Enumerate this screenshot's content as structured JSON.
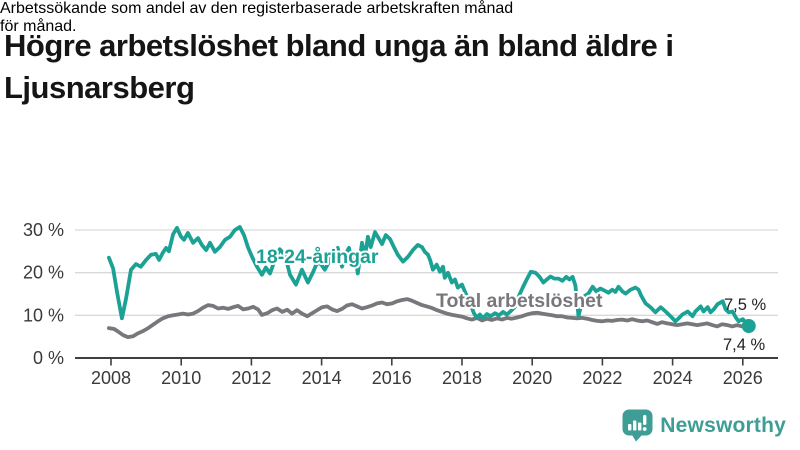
{
  "header": {
    "title_lines": [
      "Högre arbetslöshet bland unga än bland äldre i",
      "Ljusnarsberg"
    ],
    "subtitle_lines": [
      "Arbetssökande som andel av den registerbaserade arbetskraften månad",
      "för månad."
    ]
  },
  "footer": {
    "brand": "Newsworthy"
  },
  "colors": {
    "youth_line": "#1ba294",
    "total_line": "#77777c",
    "axis": "#3f3f3f",
    "grid": "#d9d9d9",
    "tick_text": "#3a3a3a",
    "end_label_text": "#1f1f1f",
    "brand_teal": "#3e9d95",
    "background": "#ffffff"
  },
  "chart_data": {
    "type": "line",
    "title": "Högre arbetslöshet bland unga än bland äldre i Ljusnarsberg",
    "subtitle": "Arbetssökande som andel av den registerbaserade arbetskraften månad för månad.",
    "xlabel": "",
    "ylabel": "",
    "y_axis": {
      "unit": "%",
      "min": 0,
      "max": 32,
      "ticks": [
        0,
        10,
        20,
        30
      ],
      "tick_labels": [
        "0 %",
        "10 %",
        "20 %",
        "30 %"
      ],
      "grid": true
    },
    "x_axis": {
      "min": 2006.9,
      "max": 2027.1,
      "ticks": [
        2008,
        2010,
        2012,
        2014,
        2016,
        2018,
        2020,
        2022,
        2024,
        2026
      ]
    },
    "legend_position": "inline-labels",
    "series": [
      {
        "name": "18-24-åringar",
        "end_label": "7,5 %",
        "end_value": 7.5,
        "points": [
          [
            2007.94,
            23.5
          ],
          [
            2008.06,
            21.0
          ],
          [
            2008.17,
            15.5
          ],
          [
            2008.31,
            9.3
          ],
          [
            2008.43,
            14.0
          ],
          [
            2008.57,
            20.7
          ],
          [
            2008.71,
            22.0
          ],
          [
            2008.85,
            21.4
          ],
          [
            2009.0,
            23.0
          ],
          [
            2009.14,
            24.2
          ],
          [
            2009.28,
            24.4
          ],
          [
            2009.37,
            23.0
          ],
          [
            2009.48,
            24.7
          ],
          [
            2009.57,
            25.8
          ],
          [
            2009.65,
            25.0
          ],
          [
            2009.77,
            29.0
          ],
          [
            2009.88,
            30.5
          ],
          [
            2009.99,
            28.5
          ],
          [
            2010.08,
            27.7
          ],
          [
            2010.19,
            29.3
          ],
          [
            2010.34,
            27.0
          ],
          [
            2010.48,
            28.1
          ],
          [
            2010.59,
            26.5
          ],
          [
            2010.71,
            25.3
          ],
          [
            2010.82,
            27.0
          ],
          [
            2010.96,
            24.9
          ],
          [
            2011.1,
            26.0
          ],
          [
            2011.25,
            27.7
          ],
          [
            2011.39,
            28.4
          ],
          [
            2011.53,
            30.0
          ],
          [
            2011.67,
            30.7
          ],
          [
            2011.79,
            28.8
          ],
          [
            2011.9,
            26.0
          ],
          [
            2012.02,
            23.7
          ],
          [
            2012.16,
            21.4
          ],
          [
            2012.3,
            19.5
          ],
          [
            2012.41,
            21.2
          ],
          [
            2012.53,
            19.8
          ],
          [
            2012.67,
            23.0
          ],
          [
            2012.81,
            25.5
          ],
          [
            2012.96,
            24.0
          ],
          [
            2013.1,
            19.5
          ],
          [
            2013.27,
            17.2
          ],
          [
            2013.44,
            20.7
          ],
          [
            2013.61,
            17.7
          ],
          [
            2013.75,
            20.0
          ],
          [
            2013.87,
            22.3
          ],
          [
            2013.98,
            22.0
          ],
          [
            2014.09,
            20.7
          ],
          [
            2014.24,
            23.0
          ],
          [
            2014.35,
            25.0
          ],
          [
            2014.46,
            25.8
          ],
          [
            2014.58,
            21.4
          ],
          [
            2014.69,
            24.5
          ],
          [
            2014.78,
            25.8
          ],
          [
            2014.86,
            22.6
          ],
          [
            2014.95,
            24.2
          ],
          [
            2015.03,
            19.8
          ],
          [
            2015.15,
            27.0
          ],
          [
            2015.23,
            23.5
          ],
          [
            2015.32,
            28.4
          ],
          [
            2015.4,
            26.0
          ],
          [
            2015.52,
            29.5
          ],
          [
            2015.63,
            28.0
          ],
          [
            2015.72,
            26.7
          ],
          [
            2015.83,
            28.8
          ],
          [
            2015.95,
            27.9
          ],
          [
            2016.06,
            26.0
          ],
          [
            2016.17,
            24.2
          ],
          [
            2016.32,
            22.6
          ],
          [
            2016.46,
            23.7
          ],
          [
            2016.6,
            25.3
          ],
          [
            2016.74,
            26.5
          ],
          [
            2016.86,
            26.0
          ],
          [
            2016.94,
            24.9
          ],
          [
            2017.03,
            24.2
          ],
          [
            2017.09,
            23.0
          ],
          [
            2017.17,
            20.7
          ],
          [
            2017.28,
            21.9
          ],
          [
            2017.37,
            20.2
          ],
          [
            2017.46,
            21.4
          ],
          [
            2017.51,
            18.8
          ],
          [
            2017.6,
            20.0
          ],
          [
            2017.71,
            17.7
          ],
          [
            2017.8,
            18.4
          ],
          [
            2017.88,
            16.5
          ],
          [
            2018.0,
            17.2
          ],
          [
            2018.08,
            15.6
          ],
          [
            2018.22,
            13.0
          ],
          [
            2018.34,
            10.5
          ],
          [
            2018.42,
            9.5
          ],
          [
            2018.51,
            10.2
          ],
          [
            2018.6,
            9.3
          ],
          [
            2018.71,
            10.3
          ],
          [
            2018.82,
            9.8
          ],
          [
            2018.94,
            10.5
          ],
          [
            2019.05,
            10.0
          ],
          [
            2019.17,
            10.8
          ],
          [
            2019.28,
            10.2
          ],
          [
            2019.39,
            11.0
          ],
          [
            2019.51,
            12.0
          ],
          [
            2019.62,
            14.5
          ],
          [
            2019.73,
            16.5
          ],
          [
            2019.85,
            18.5
          ],
          [
            2019.96,
            20.2
          ],
          [
            2020.09,
            20.0
          ],
          [
            2020.21,
            19.0
          ],
          [
            2020.32,
            17.7
          ],
          [
            2020.43,
            18.5
          ],
          [
            2020.52,
            19.1
          ],
          [
            2020.63,
            18.6
          ],
          [
            2020.75,
            18.6
          ],
          [
            2020.86,
            18.1
          ],
          [
            2020.97,
            19.0
          ],
          [
            2021.06,
            18.4
          ],
          [
            2021.15,
            19.0
          ],
          [
            2021.23,
            17.0
          ],
          [
            2021.32,
            9.8
          ],
          [
            2021.4,
            12.5
          ],
          [
            2021.49,
            14.5
          ],
          [
            2021.6,
            15.1
          ],
          [
            2021.72,
            16.7
          ],
          [
            2021.83,
            15.6
          ],
          [
            2021.94,
            16.3
          ],
          [
            2022.06,
            15.8
          ],
          [
            2022.17,
            15.3
          ],
          [
            2022.28,
            16.0
          ],
          [
            2022.37,
            15.5
          ],
          [
            2022.46,
            16.7
          ],
          [
            2022.57,
            15.6
          ],
          [
            2022.66,
            15.1
          ],
          [
            2022.8,
            16.0
          ],
          [
            2022.94,
            16.5
          ],
          [
            2023.03,
            16.0
          ],
          [
            2023.11,
            14.5
          ],
          [
            2023.23,
            12.8
          ],
          [
            2023.37,
            11.9
          ],
          [
            2023.51,
            10.7
          ],
          [
            2023.66,
            11.9
          ],
          [
            2023.8,
            10.9
          ],
          [
            2023.94,
            9.8
          ],
          [
            2024.08,
            8.6
          ],
          [
            2024.2,
            9.5
          ],
          [
            2024.28,
            10.2
          ],
          [
            2024.43,
            10.9
          ],
          [
            2024.57,
            9.8
          ],
          [
            2024.65,
            10.9
          ],
          [
            2024.8,
            12.1
          ],
          [
            2024.88,
            10.9
          ],
          [
            2025.0,
            11.9
          ],
          [
            2025.08,
            10.7
          ],
          [
            2025.17,
            11.4
          ],
          [
            2025.28,
            12.6
          ],
          [
            2025.43,
            13.3
          ],
          [
            2025.51,
            11.4
          ],
          [
            2025.6,
            10.7
          ],
          [
            2025.71,
            10.9
          ],
          [
            2025.8,
            9.5
          ],
          [
            2025.88,
            8.6
          ],
          [
            2026.0,
            9.1
          ],
          [
            2026.08,
            8.4
          ],
          [
            2026.17,
            7.5
          ]
        ]
      },
      {
        "name": "Total arbetslöshet",
        "end_label": "7,4 %",
        "end_value": 7.4,
        "points": [
          [
            2007.94,
            7.0
          ],
          [
            2008.09,
            6.8
          ],
          [
            2008.2,
            6.2
          ],
          [
            2008.34,
            5.4
          ],
          [
            2008.48,
            4.9
          ],
          [
            2008.63,
            5.1
          ],
          [
            2008.77,
            5.8
          ],
          [
            2008.91,
            6.3
          ],
          [
            2009.06,
            7.0
          ],
          [
            2009.2,
            7.8
          ],
          [
            2009.34,
            8.6
          ],
          [
            2009.48,
            9.3
          ],
          [
            2009.63,
            9.8
          ],
          [
            2009.77,
            10.0
          ],
          [
            2009.91,
            10.2
          ],
          [
            2010.05,
            10.4
          ],
          [
            2010.2,
            10.2
          ],
          [
            2010.34,
            10.4
          ],
          [
            2010.48,
            11.0
          ],
          [
            2010.62,
            11.8
          ],
          [
            2010.77,
            12.4
          ],
          [
            2010.91,
            12.2
          ],
          [
            2011.05,
            11.6
          ],
          [
            2011.19,
            11.8
          ],
          [
            2011.34,
            11.5
          ],
          [
            2011.48,
            11.9
          ],
          [
            2011.62,
            12.2
          ],
          [
            2011.77,
            11.4
          ],
          [
            2011.91,
            11.6
          ],
          [
            2012.05,
            12.0
          ],
          [
            2012.19,
            11.4
          ],
          [
            2012.3,
            10.1
          ],
          [
            2012.45,
            10.5
          ],
          [
            2012.59,
            11.2
          ],
          [
            2012.73,
            11.6
          ],
          [
            2012.88,
            10.8
          ],
          [
            2013.02,
            11.3
          ],
          [
            2013.16,
            10.4
          ],
          [
            2013.3,
            11.2
          ],
          [
            2013.44,
            10.4
          ],
          [
            2013.59,
            9.8
          ],
          [
            2013.73,
            10.5
          ],
          [
            2013.87,
            11.2
          ],
          [
            2014.01,
            11.9
          ],
          [
            2014.16,
            12.1
          ],
          [
            2014.3,
            11.4
          ],
          [
            2014.44,
            11.0
          ],
          [
            2014.58,
            11.5
          ],
          [
            2014.72,
            12.3
          ],
          [
            2014.87,
            12.6
          ],
          [
            2015.01,
            12.1
          ],
          [
            2015.15,
            11.6
          ],
          [
            2015.29,
            11.9
          ],
          [
            2015.44,
            12.3
          ],
          [
            2015.58,
            12.8
          ],
          [
            2015.72,
            13.0
          ],
          [
            2015.86,
            12.6
          ],
          [
            2016.01,
            12.8
          ],
          [
            2016.15,
            13.3
          ],
          [
            2016.29,
            13.6
          ],
          [
            2016.44,
            13.8
          ],
          [
            2016.58,
            13.4
          ],
          [
            2016.72,
            12.9
          ],
          [
            2016.86,
            12.4
          ],
          [
            2017.0,
            12.1
          ],
          [
            2017.15,
            11.7
          ],
          [
            2017.29,
            11.2
          ],
          [
            2017.43,
            10.8
          ],
          [
            2017.57,
            10.4
          ],
          [
            2017.72,
            10.1
          ],
          [
            2017.86,
            9.9
          ],
          [
            2018.0,
            9.7
          ],
          [
            2018.14,
            9.3
          ],
          [
            2018.28,
            9.0
          ],
          [
            2018.43,
            9.4
          ],
          [
            2018.57,
            8.8
          ],
          [
            2018.71,
            9.2
          ],
          [
            2018.85,
            8.9
          ],
          [
            2019.0,
            9.3
          ],
          [
            2019.14,
            9.0
          ],
          [
            2019.28,
            9.4
          ],
          [
            2019.42,
            9.2
          ],
          [
            2019.57,
            9.5
          ],
          [
            2019.71,
            9.8
          ],
          [
            2019.85,
            10.2
          ],
          [
            2020.0,
            10.5
          ],
          [
            2020.14,
            10.6
          ],
          [
            2020.28,
            10.4
          ],
          [
            2020.43,
            10.2
          ],
          [
            2020.57,
            10.0
          ],
          [
            2020.71,
            9.8
          ],
          [
            2020.85,
            9.8
          ],
          [
            2021.0,
            9.5
          ],
          [
            2021.14,
            9.4
          ],
          [
            2021.28,
            9.3
          ],
          [
            2021.42,
            9.4
          ],
          [
            2021.57,
            9.2
          ],
          [
            2021.71,
            8.9
          ],
          [
            2021.85,
            8.7
          ],
          [
            2022.0,
            8.6
          ],
          [
            2022.14,
            8.8
          ],
          [
            2022.28,
            8.7
          ],
          [
            2022.42,
            8.9
          ],
          [
            2022.56,
            9.0
          ],
          [
            2022.71,
            8.8
          ],
          [
            2022.85,
            9.1
          ],
          [
            2022.99,
            8.8
          ],
          [
            2023.13,
            8.6
          ],
          [
            2023.28,
            8.8
          ],
          [
            2023.42,
            8.4
          ],
          [
            2023.56,
            8.0
          ],
          [
            2023.7,
            8.4
          ],
          [
            2023.85,
            8.1
          ],
          [
            2023.99,
            7.9
          ],
          [
            2024.13,
            7.7
          ],
          [
            2024.27,
            7.9
          ],
          [
            2024.42,
            8.1
          ],
          [
            2024.56,
            7.9
          ],
          [
            2024.7,
            7.7
          ],
          [
            2024.84,
            7.9
          ],
          [
            2024.99,
            8.1
          ],
          [
            2025.13,
            7.7
          ],
          [
            2025.27,
            7.4
          ],
          [
            2025.41,
            7.9
          ],
          [
            2025.56,
            7.7
          ],
          [
            2025.7,
            7.4
          ],
          [
            2025.84,
            7.7
          ],
          [
            2025.98,
            7.4
          ],
          [
            2026.15,
            7.4
          ]
        ]
      }
    ]
  }
}
